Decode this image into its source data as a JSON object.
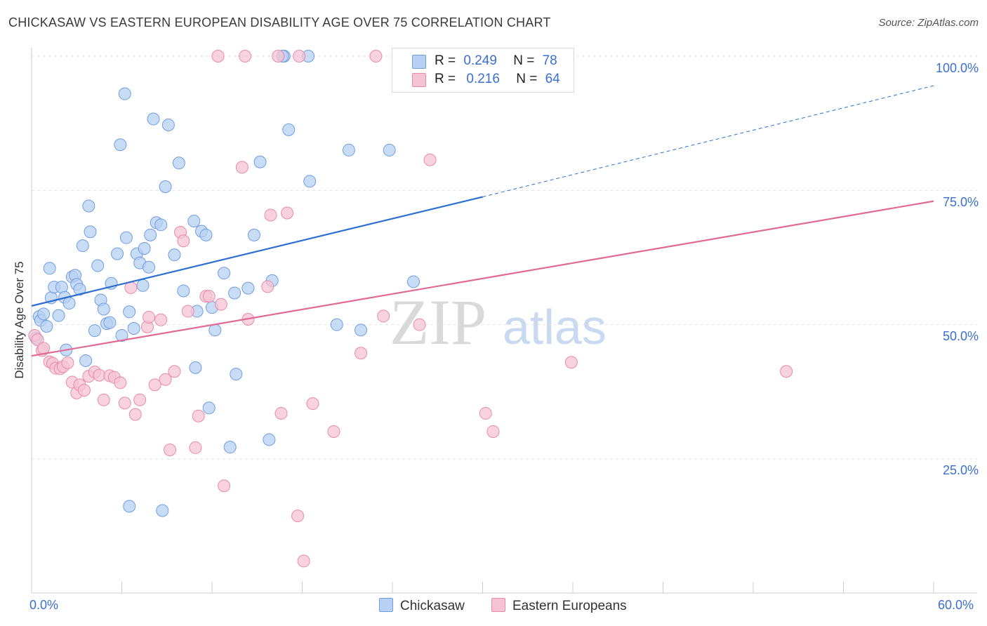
{
  "title": "CHICKASAW VS EASTERN EUROPEAN DISABILITY AGE OVER 75 CORRELATION CHART",
  "source": "Source: ZipAtlas.com",
  "watermark": {
    "zip": "ZIP",
    "atlas": "atlas"
  },
  "legend": {
    "r_label": "R =",
    "n_label": "N =",
    "series": [
      {
        "name": "Chickasaw",
        "r": "0.249",
        "n": "78",
        "fill": "#b7d0f3",
        "stroke": "#6f9de0"
      },
      {
        "name": "Eastern Europeans",
        "r": "0.216",
        "n": "64",
        "fill": "#f6c3d4",
        "stroke": "#e88aaa"
      }
    ]
  },
  "colors": {
    "blue_line": "#2c6fd1",
    "pink_line": "#e06a95",
    "tick_text": "#3a6fd0",
    "grid": "#e2e2e2"
  },
  "chart_data": {
    "type": "scatter",
    "title": "CHICKASAW VS EASTERN EUROPEAN DISABILITY AGE OVER 75 CORRELATION CHART",
    "xlabel": "",
    "ylabel": "Disability Age Over 75",
    "xlim": [
      0,
      60
    ],
    "ylim": [
      0,
      100
    ],
    "x_tick_labels": [
      "0.0%",
      "60.0%"
    ],
    "y_tick_labels": [
      "25.0%",
      "50.0%",
      "75.0%",
      "100.0%"
    ],
    "y_ticks": [
      25,
      50,
      75,
      100
    ],
    "grid": true,
    "legend_position": "top-center",
    "series": [
      {
        "name": "Chickasaw",
        "color": "#6f9de0",
        "trend": {
          "x0": 0,
          "y0": 53.5,
          "x1": 30,
          "y1": 73.8,
          "dashed_to_x": 60,
          "dashed_to_y": 94.5
        },
        "points": [
          [
            0.3,
            47.5
          ],
          [
            0.5,
            51.5
          ],
          [
            0.6,
            50.8
          ],
          [
            0.8,
            52.0
          ],
          [
            1.0,
            49.7
          ],
          [
            1.2,
            60.5
          ],
          [
            1.3,
            55.0
          ],
          [
            1.5,
            57.0
          ],
          [
            1.8,
            51.7
          ],
          [
            2.0,
            57.0
          ],
          [
            2.2,
            55.1
          ],
          [
            2.3,
            45.3
          ],
          [
            2.5,
            54.0
          ],
          [
            2.7,
            58.9
          ],
          [
            2.9,
            59.2
          ],
          [
            3.0,
            57.5
          ],
          [
            3.2,
            56.6
          ],
          [
            3.4,
            64.7
          ],
          [
            3.6,
            43.3
          ],
          [
            3.8,
            72.1
          ],
          [
            3.9,
            67.3
          ],
          [
            4.2,
            48.9
          ],
          [
            4.4,
            61.0
          ],
          [
            4.6,
            54.6
          ],
          [
            4.8,
            52.9
          ],
          [
            5.0,
            50.2
          ],
          [
            5.2,
            50.4
          ],
          [
            5.3,
            57.7
          ],
          [
            5.7,
            63.2
          ],
          [
            5.9,
            83.5
          ],
          [
            6.0,
            48.0
          ],
          [
            6.2,
            93.0
          ],
          [
            6.3,
            66.2
          ],
          [
            6.5,
            52.4
          ],
          [
            6.8,
            49.3
          ],
          [
            7.0,
            63.2
          ],
          [
            7.2,
            61.5
          ],
          [
            7.4,
            57.3
          ],
          [
            7.5,
            64.2
          ],
          [
            7.8,
            60.7
          ],
          [
            7.9,
            66.7
          ],
          [
            8.1,
            88.3
          ],
          [
            8.3,
            69.0
          ],
          [
            8.6,
            68.6
          ],
          [
            8.9,
            75.7
          ],
          [
            9.1,
            87.2
          ],
          [
            9.5,
            63.0
          ],
          [
            9.8,
            80.1
          ],
          [
            10.1,
            56.3
          ],
          [
            10.8,
            69.3
          ],
          [
            10.9,
            42.0
          ],
          [
            11.0,
            52.5
          ],
          [
            11.3,
            67.4
          ],
          [
            11.6,
            66.7
          ],
          [
            11.8,
            34.5
          ],
          [
            12.0,
            53.2
          ],
          [
            12.2,
            49.0
          ],
          [
            12.8,
            59.6
          ],
          [
            13.2,
            27.2
          ],
          [
            13.5,
            55.9
          ],
          [
            13.6,
            40.8
          ],
          [
            14.4,
            56.8
          ],
          [
            14.8,
            66.7
          ],
          [
            15.2,
            80.3
          ],
          [
            15.8,
            28.6
          ],
          [
            16.0,
            58.2
          ],
          [
            16.8,
            100
          ],
          [
            17.1,
            86.3
          ],
          [
            18.4,
            100
          ],
          [
            18.5,
            76.7
          ],
          [
            20.3,
            50.0
          ],
          [
            21.1,
            82.5
          ],
          [
            21.9,
            49.0
          ],
          [
            23.8,
            82.5
          ],
          [
            25.4,
            58.0
          ],
          [
            6.5,
            16.2
          ],
          [
            8.7,
            15.4
          ],
          [
            16.7,
            100
          ]
        ]
      },
      {
        "name": "Eastern Europeans",
        "color": "#e88aaa",
        "trend": {
          "x0": 0,
          "y0": 44.2,
          "x1": 60,
          "y1": 73.0
        },
        "points": [
          [
            0.2,
            48.0
          ],
          [
            0.4,
            47.2
          ],
          [
            0.7,
            45.2
          ],
          [
            0.8,
            45.6
          ],
          [
            1.2,
            43.1
          ],
          [
            1.4,
            42.8
          ],
          [
            1.6,
            41.9
          ],
          [
            1.9,
            41.8
          ],
          [
            2.1,
            42.2
          ],
          [
            2.4,
            42.9
          ],
          [
            2.7,
            39.3
          ],
          [
            3.0,
            37.3
          ],
          [
            3.2,
            38.8
          ],
          [
            3.5,
            37.8
          ],
          [
            3.8,
            40.4
          ],
          [
            4.2,
            41.2
          ],
          [
            4.5,
            40.6
          ],
          [
            4.8,
            36.0
          ],
          [
            5.2,
            40.5
          ],
          [
            5.5,
            40.2
          ],
          [
            5.9,
            39.2
          ],
          [
            6.2,
            35.4
          ],
          [
            6.6,
            56.9
          ],
          [
            6.9,
            33.3
          ],
          [
            7.2,
            36.0
          ],
          [
            7.7,
            49.6
          ],
          [
            7.8,
            51.4
          ],
          [
            8.2,
            38.8
          ],
          [
            8.6,
            50.9
          ],
          [
            8.9,
            39.8
          ],
          [
            9.2,
            26.7
          ],
          [
            9.5,
            41.3
          ],
          [
            9.9,
            67.2
          ],
          [
            10.1,
            65.6
          ],
          [
            10.4,
            52.5
          ],
          [
            10.9,
            27.1
          ],
          [
            11.1,
            33.0
          ],
          [
            11.6,
            55.3
          ],
          [
            11.8,
            55.3
          ],
          [
            12.6,
            53.8
          ],
          [
            12.8,
            20.0
          ],
          [
            14.0,
            79.3
          ],
          [
            14.4,
            51.0
          ],
          [
            15.7,
            57.1
          ],
          [
            15.9,
            70.4
          ],
          [
            16.6,
            33.5
          ],
          [
            17.0,
            70.8
          ],
          [
            17.7,
            14.4
          ],
          [
            18.1,
            6.0
          ],
          [
            18.7,
            35.3
          ],
          [
            20.1,
            30.1
          ],
          [
            21.9,
            44.7
          ],
          [
            23.4,
            51.6
          ],
          [
            25.8,
            50.0
          ],
          [
            26.5,
            80.7
          ],
          [
            30.2,
            33.5
          ],
          [
            30.7,
            30.1
          ],
          [
            35.9,
            43.0
          ],
          [
            50.2,
            41.3
          ],
          [
            12.4,
            100
          ],
          [
            14.2,
            100
          ],
          [
            16.4,
            100
          ],
          [
            17.8,
            100
          ],
          [
            22.9,
            100
          ]
        ]
      }
    ]
  }
}
